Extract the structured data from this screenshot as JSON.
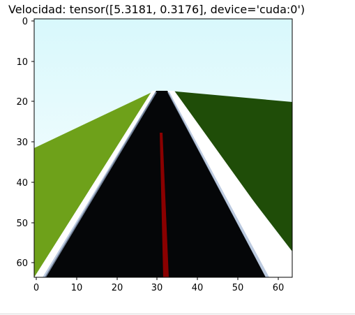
{
  "title": "Velocidad: tensor([5.3181, 0.3176], device='cuda:0')",
  "image_axes": {
    "x_ticks": [
      "0",
      "10",
      "20",
      "30",
      "40",
      "50",
      "60"
    ],
    "y_ticks": [
      "0",
      "10",
      "20",
      "30",
      "40",
      "50",
      "60"
    ],
    "xlim": [
      -0.5,
      63.5
    ],
    "ylim": [
      63.5,
      -0.5
    ]
  },
  "scene": {
    "sky_top": "#d8f8fc",
    "sky_bottom": "#ffffff",
    "left_grass": "#6ea11a",
    "right_grass": "#1f4d08",
    "road": "#050608",
    "edge_line": "#ffffff",
    "center_line": "#8a0000"
  }
}
